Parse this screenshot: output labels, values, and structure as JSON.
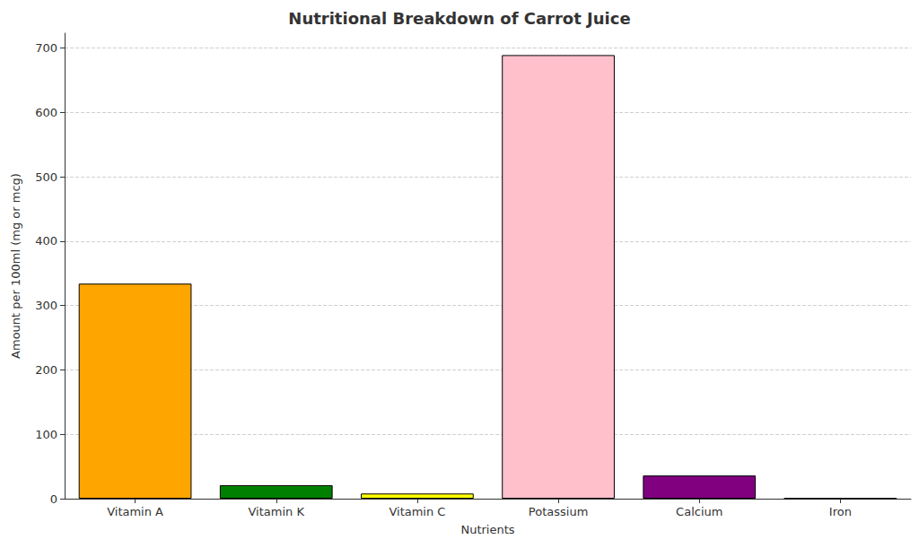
{
  "chart_data": {
    "type": "bar",
    "title": "Nutritional Breakdown of Carrot Juice",
    "x_label": "Nutrients",
    "y_label": "Amount per 100ml (mg or mcg)",
    "categories": [
      "Vitamin A",
      "Vitamin K",
      "Vitamin C",
      "Potassium",
      "Calcium",
      "Iron"
    ],
    "values": [
      334,
      21,
      8,
      689,
      36,
      0.5
    ],
    "colors": [
      "#ffa500",
      "#008000",
      "#ffff00",
      "#ffc0cb",
      "#800080",
      "#8b4513"
    ],
    "ylim": [
      0,
      723
    ],
    "yticks": [
      0,
      100,
      200,
      300,
      400,
      500,
      600,
      700
    ],
    "grid": true
  }
}
